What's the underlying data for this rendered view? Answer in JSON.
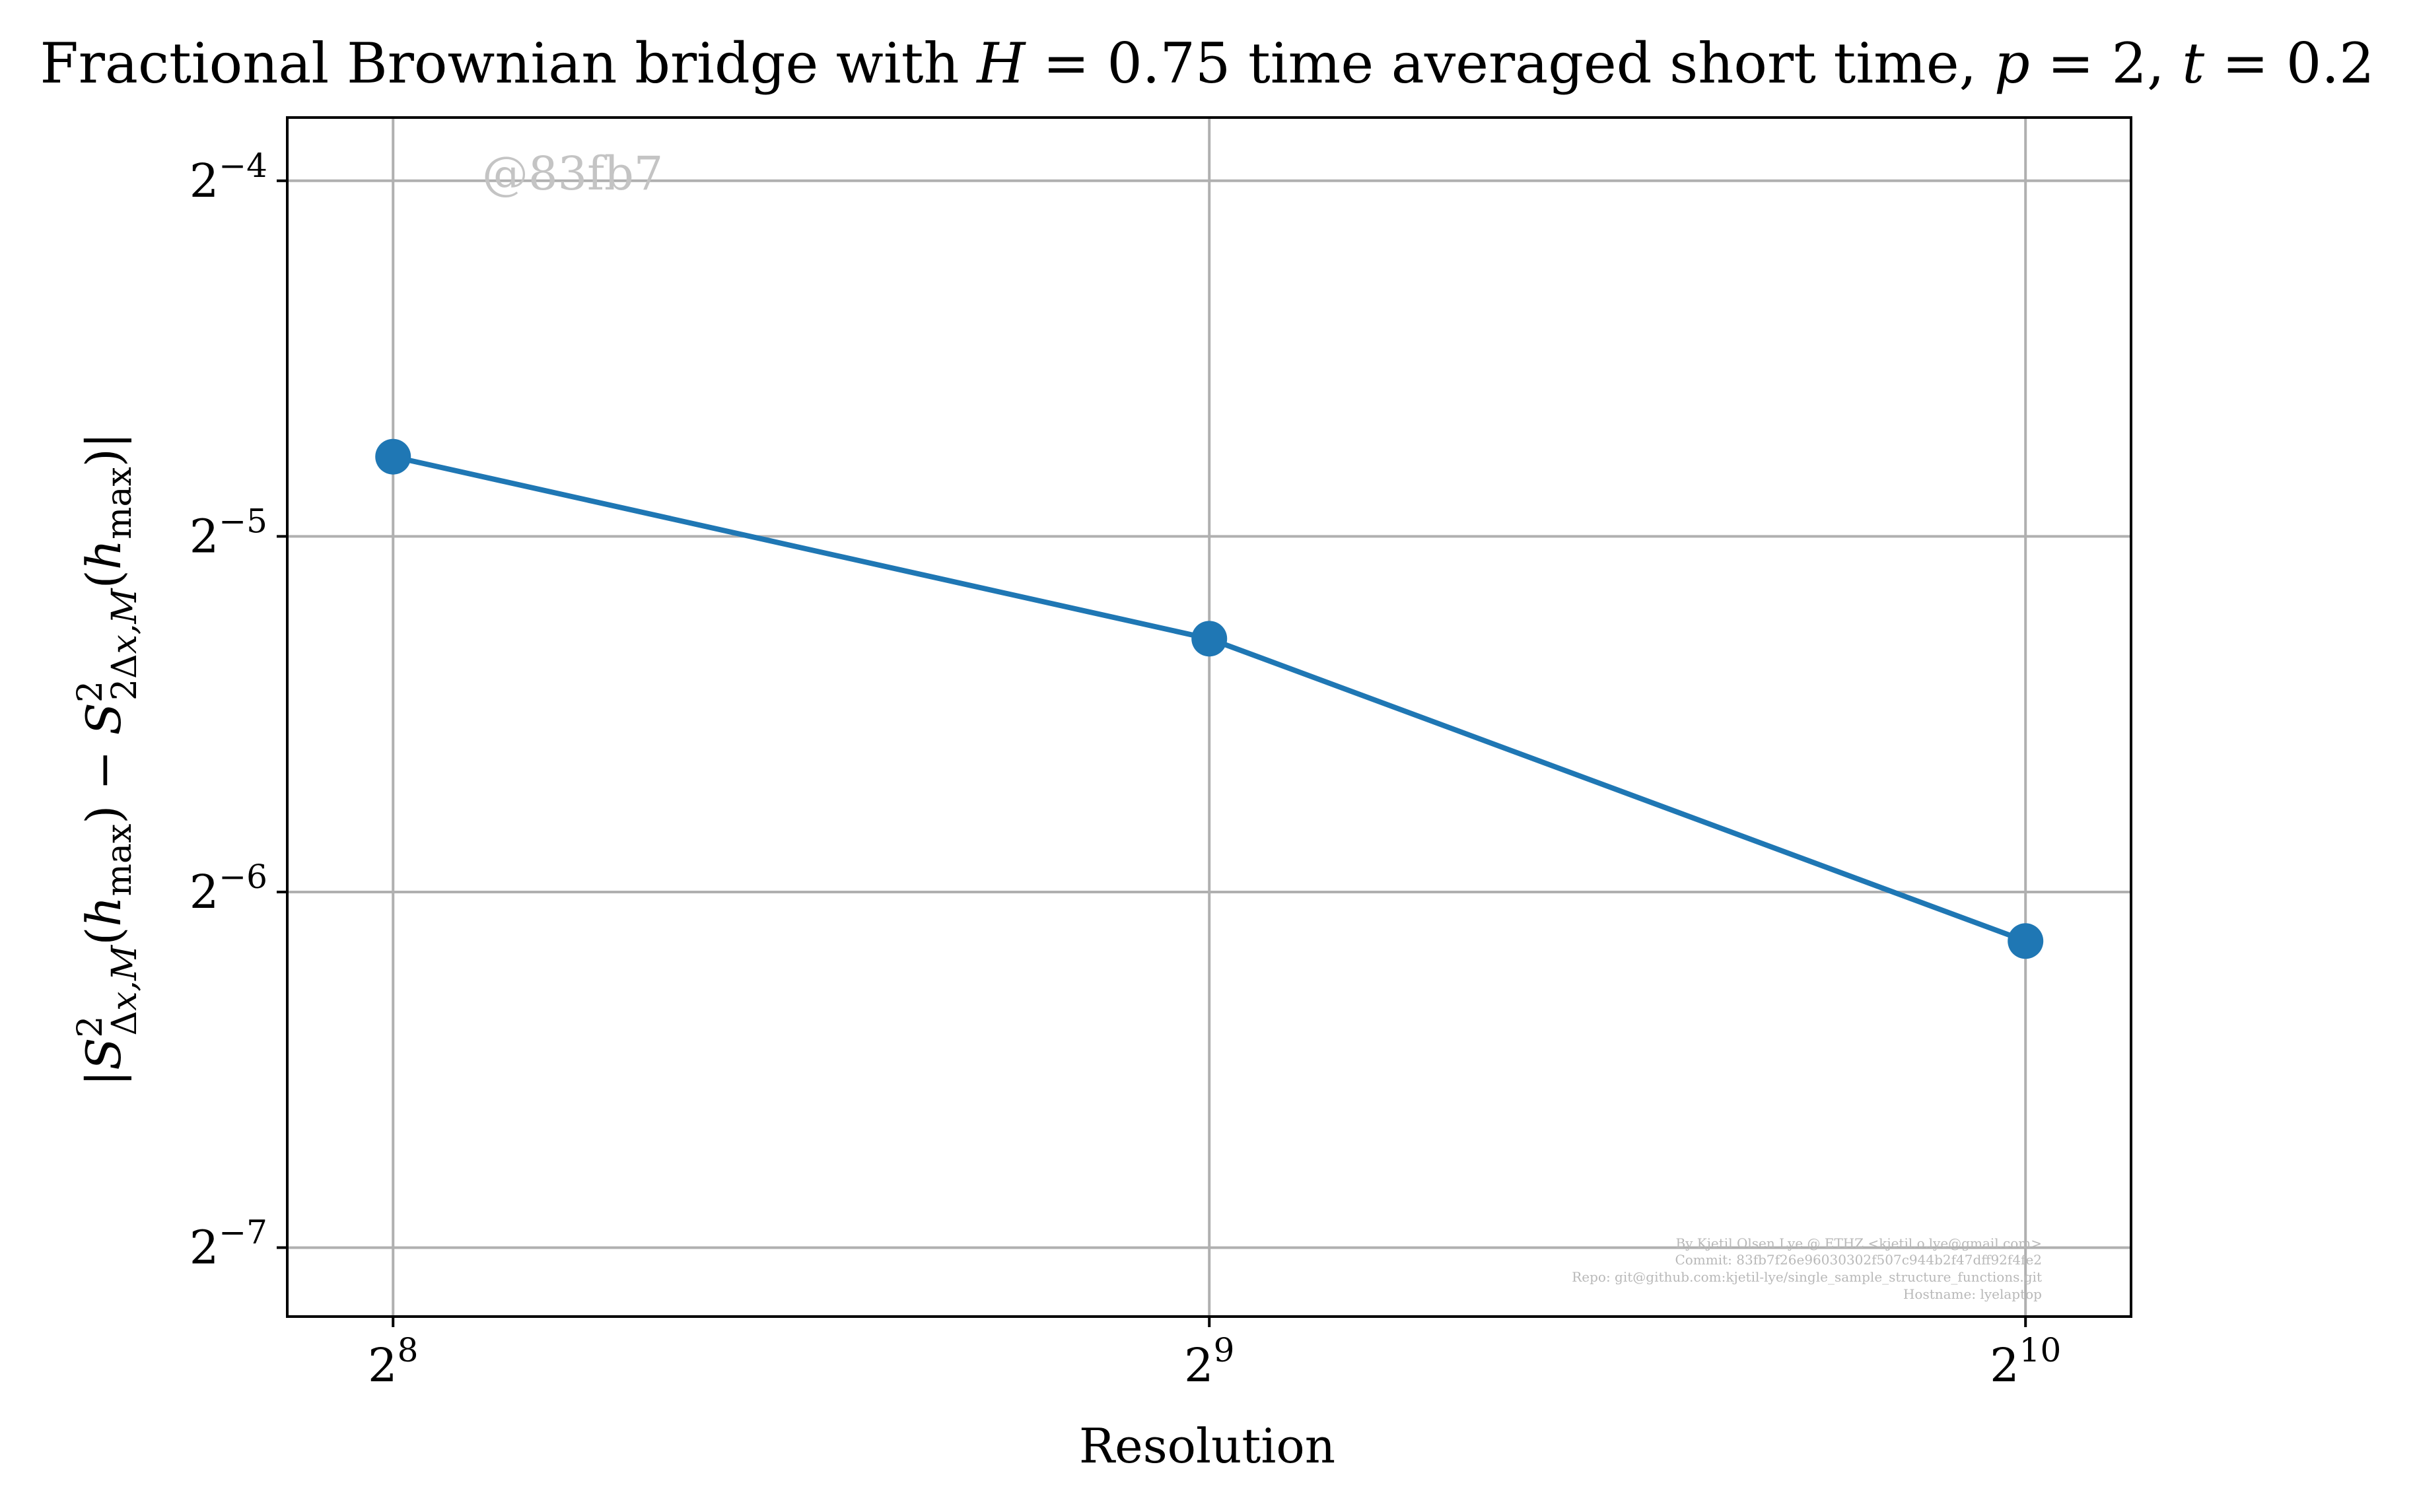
{
  "chart_data": {
    "type": "line",
    "title": "Fractional Brownian bridge with H = 0.75 time averaged short time, p = 2, t = 0.2",
    "xlabel": "Resolution",
    "ylabel": "|S²_{Δx,M}(h_max) − S²_{2Δx,M}(h_max)|",
    "x_scale": "log2",
    "y_scale": "log2",
    "x_ticks": [
      256,
      512,
      1024
    ],
    "x_tick_labels": [
      {
        "base": "2",
        "exp": "8"
      },
      {
        "base": "2",
        "exp": "9"
      },
      {
        "base": "2",
        "exp": "10"
      }
    ],
    "y_ticks": [
      0.0625,
      0.03125,
      0.015625,
      0.0078125
    ],
    "y_tick_labels": [
      {
        "base": "2",
        "exp": "−4"
      },
      {
        "base": "2",
        "exp": "−5"
      },
      {
        "base": "2",
        "exp": "−6"
      },
      {
        "base": "2",
        "exp": "−7"
      }
    ],
    "xlim": [
      234,
      1120
    ],
    "ylim": [
      0.00683,
      0.0707
    ],
    "grid": true,
    "series": [
      {
        "color": "#1f77b4",
        "marker": "circle",
        "x": [
          256,
          512,
          1024
        ],
        "y": [
          0.0365,
          0.0256,
          0.0142
        ]
      }
    ]
  },
  "watermark": "@83fb7",
  "credits": [
    "By Kjetil Olsen Lye @ ETHZ <kjetil.o.lye@gmail.com>",
    "Commit: 83fb7f26e96030302f507c944b2f47dff92f4fe2",
    "Repo: git@github.com:kjetil-lye/single_sample_structure_functions.git",
    "Hostname: lyelaptop"
  ]
}
